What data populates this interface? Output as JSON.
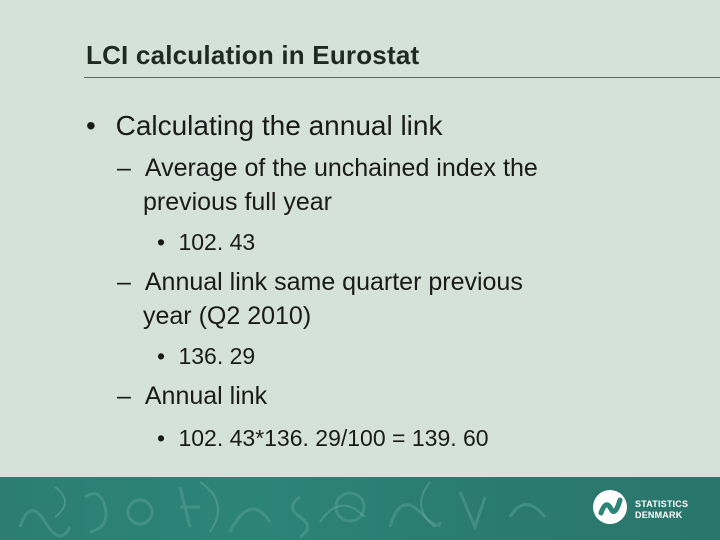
{
  "slide": {
    "title": "LCI calculation in Eurostat",
    "bullets": {
      "b1": {
        "marker": "•",
        "text": "Calculating the annual link"
      },
      "b2_line1": {
        "marker": "–",
        "text": "Average of the unchained index the"
      },
      "b2_line2": "previous full year",
      "b3": {
        "marker": "•",
        "text": "102. 43"
      },
      "b4_line1": {
        "marker": "–",
        "text": "Annual link same quarter previous"
      },
      "b4_line2": "year (Q2 2010)",
      "b5": {
        "marker": "•",
        "text": "136. 29"
      },
      "b6": {
        "marker": "–",
        "text": "Annual link"
      },
      "b7": {
        "marker": "•",
        "text": "102. 43*136. 29/100 = 139. 60"
      }
    }
  },
  "footer": {
    "logo_icon": "statistics-denmark-logo-icon",
    "logo_line1": "STATISTICS",
    "logo_line2": "DENMARK"
  },
  "colors": {
    "background": "#d5e2da",
    "footer": "#2c8477",
    "title_rule": "#5a6b63"
  }
}
